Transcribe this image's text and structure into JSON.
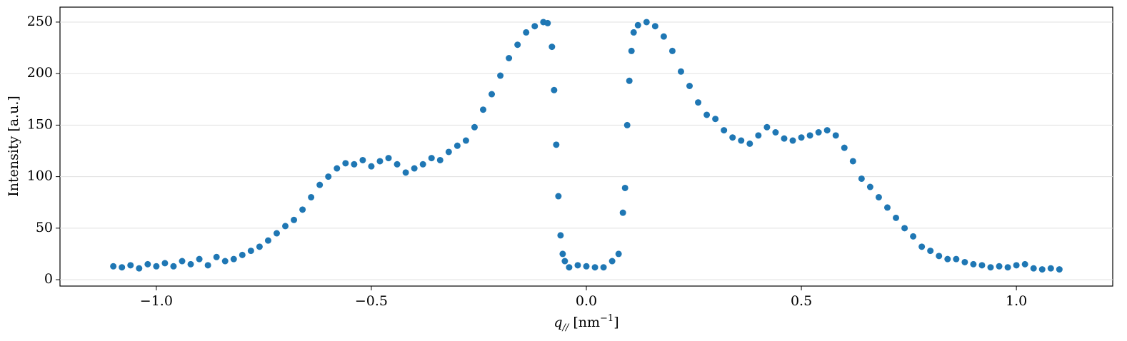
{
  "chart_data": {
    "type": "scatter",
    "xlabel": [
      "q",
      "//",
      " [nm",
      "−1",
      "]"
    ],
    "ylabel": "Intensity [a.u.]",
    "xlim": [
      -1.224,
      1.224
    ],
    "ylim": [
      -6.2,
      264.5
    ],
    "xticks": [
      {
        "value": -1.0,
        "label": "−1.0"
      },
      {
        "value": -0.5,
        "label": "−0.5"
      },
      {
        "value": 0.0,
        "label": "0.0"
      },
      {
        "value": 0.5,
        "label": "0.5"
      },
      {
        "value": 1.0,
        "label": "1.0"
      }
    ],
    "yticks": [
      0,
      50,
      100,
      150,
      200,
      250
    ],
    "grid": "y",
    "color": "#1f77b4",
    "x": [
      -1.1,
      -1.08,
      -1.06,
      -1.04,
      -1.02,
      -1.0,
      -0.98,
      -0.96,
      -0.94,
      -0.92,
      -0.9,
      -0.88,
      -0.86,
      -0.84,
      -0.82,
      -0.8,
      -0.78,
      -0.76,
      -0.74,
      -0.72,
      -0.7,
      -0.68,
      -0.66,
      -0.64,
      -0.62,
      -0.6,
      -0.58,
      -0.56,
      -0.54,
      -0.52,
      -0.5,
      -0.48,
      -0.46,
      -0.44,
      -0.42,
      -0.4,
      -0.38,
      -0.36,
      -0.34,
      -0.32,
      -0.3,
      -0.28,
      -0.26,
      -0.24,
      -0.22,
      -0.2,
      -0.18,
      -0.16,
      -0.14,
      -0.12,
      -0.1,
      -0.09,
      -0.08,
      -0.075,
      -0.07,
      -0.065,
      -0.06,
      -0.055,
      -0.05,
      -0.04,
      -0.02,
      0.0,
      0.02,
      0.04,
      0.06,
      0.075,
      0.085,
      0.09,
      0.095,
      0.1,
      0.105,
      0.11,
      0.12,
      0.14,
      0.16,
      0.18,
      0.2,
      0.22,
      0.24,
      0.26,
      0.28,
      0.3,
      0.32,
      0.34,
      0.36,
      0.38,
      0.4,
      0.42,
      0.44,
      0.46,
      0.48,
      0.5,
      0.52,
      0.54,
      0.56,
      0.58,
      0.6,
      0.62,
      0.64,
      0.66,
      0.68,
      0.7,
      0.72,
      0.74,
      0.76,
      0.78,
      0.8,
      0.82,
      0.84,
      0.86,
      0.88,
      0.9,
      0.92,
      0.94,
      0.96,
      0.98,
      1.0,
      1.02,
      1.04,
      1.06,
      1.08,
      1.1
    ],
    "values": [
      13,
      12,
      14,
      11,
      15,
      13,
      16,
      13,
      18,
      15,
      20,
      14,
      22,
      18,
      20,
      24,
      28,
      32,
      38,
      45,
      52,
      58,
      68,
      80,
      92,
      100,
      108,
      113,
      112,
      116,
      110,
      115,
      118,
      112,
      104,
      108,
      112,
      118,
      116,
      124,
      130,
      135,
      148,
      165,
      180,
      198,
      215,
      228,
      240,
      246,
      250,
      249,
      226,
      184,
      131,
      81,
      43,
      25,
      18,
      12,
      14,
      13,
      12,
      12,
      18,
      25,
      65,
      89,
      150,
      193,
      222,
      240,
      247,
      250,
      246,
      236,
      222,
      202,
      188,
      172,
      160,
      156,
      145,
      138,
      135,
      132,
      140,
      148,
      143,
      137,
      135,
      138,
      140,
      143,
      145,
      140,
      128,
      115,
      98,
      90,
      80,
      70,
      60,
      50,
      42,
      32,
      28,
      23,
      20,
      20,
      17,
      15,
      14,
      12,
      13,
      12,
      14,
      15,
      11,
      10,
      11,
      10
    ]
  }
}
